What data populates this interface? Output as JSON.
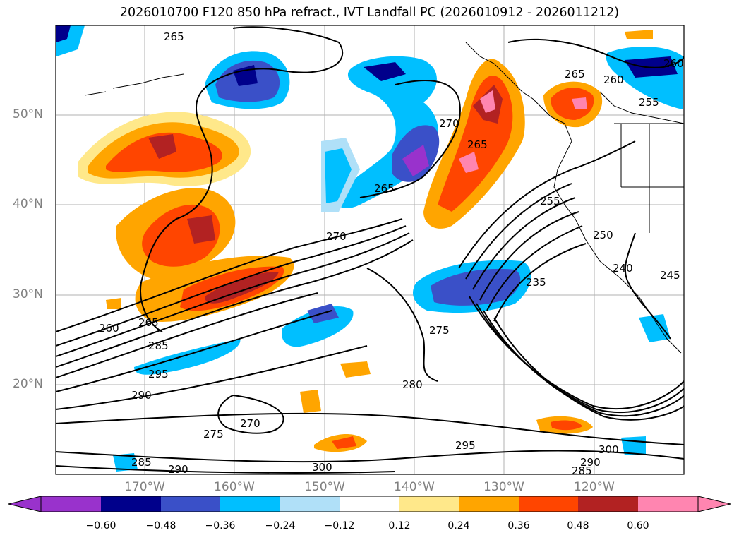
{
  "title": "2026010700 F120 850 hPa refract., IVT Landfall PC (2026010912 - 2026011212)",
  "map": {
    "lat_labels": [
      "50°N",
      "40°N",
      "30°N",
      "20°N"
    ],
    "lon_labels": [
      "170°W",
      "160°W",
      "150°W",
      "140°W",
      "130°W",
      "120°W"
    ],
    "contour_labels": [
      "265",
      "265",
      "260",
      "255",
      "260",
      "270",
      "265",
      "265",
      "270",
      "255",
      "250",
      "240",
      "245",
      "235",
      "275",
      "265",
      "260",
      "285",
      "295",
      "290",
      "280",
      "275",
      "270",
      "295",
      "300",
      "300",
      "290",
      "285",
      "285",
      "290"
    ]
  },
  "colorbar": {
    "colors": [
      "#9932cc",
      "#00008b",
      "#3a50c8",
      "#00bfff",
      "#b0e0f8",
      "#ffffff",
      "#ffe88a",
      "#ffa500",
      "#ff4500",
      "#b22222",
      "#ff85b0"
    ],
    "tick_labels": [
      "−0.60",
      "−0.48",
      "−0.36",
      "−0.24",
      "−0.12",
      "0.12",
      "0.24",
      "0.36",
      "0.48",
      "0.60"
    ]
  }
}
